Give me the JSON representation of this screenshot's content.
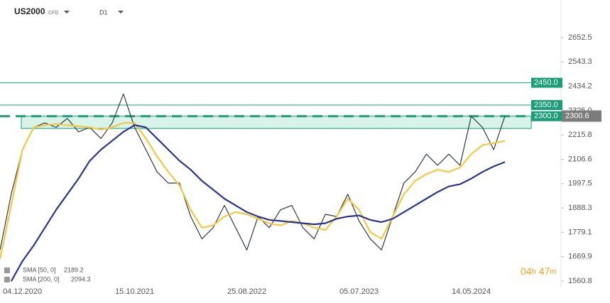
{
  "header": {
    "symbol": "US2000",
    "instrument": "CFD",
    "interval": "D1"
  },
  "chart_data": {
    "type": "line",
    "categories": [
      null,
      null,
      "04.12.2020",
      null,
      null,
      null,
      null,
      null,
      null,
      null,
      null,
      null,
      "15.10.2021",
      null,
      null,
      null,
      null,
      null,
      null,
      null,
      null,
      null,
      "25.08.2022",
      null,
      null,
      null,
      null,
      null,
      null,
      null,
      null,
      null,
      "05.07.2023",
      null,
      null,
      null,
      null,
      null,
      null,
      null,
      null,
      null,
      "14.05.2024",
      null,
      null,
      null,
      null,
      null,
      null,
      null
    ],
    "series": [
      {
        "name": "US2000",
        "color": "#2f3b44",
        "values": [
          1700,
          1950,
          2150,
          2250,
          2270,
          2250,
          2290,
          2230,
          2250,
          2200,
          2270,
          2400,
          2250,
          2150,
          2050,
          2000,
          2000,
          1850,
          1750,
          1800,
          1900,
          1800,
          1700,
          1850,
          1800,
          1880,
          1900,
          1800,
          1750,
          1860,
          1850,
          1950,
          1830,
          1750,
          1700,
          1850,
          2000,
          2050,
          2130,
          2080,
          2130,
          2080,
          2300,
          2250,
          2150,
          2300.6,
          null,
          null,
          null,
          null
        ]
      },
      {
        "name": "SMA [50, 0]",
        "value_label": "2189.2",
        "color": "#f2c744",
        "values": [
          1660,
          1900,
          2150,
          2250,
          2260,
          2265,
          2260,
          2255,
          2250,
          2240,
          2250,
          2270,
          2270,
          2200,
          2120,
          2050,
          1990,
          1880,
          1800,
          1810,
          1850,
          1870,
          1860,
          1840,
          1820,
          1810,
          1830,
          1820,
          1800,
          1790,
          1850,
          1930,
          1880,
          1780,
          1750,
          1850,
          1950,
          2010,
          2040,
          2060,
          2050,
          2070,
          2130,
          2170,
          2180,
          2189.2,
          null,
          null,
          null,
          null
        ]
      },
      {
        "name": "SMA [200, 0]",
        "value_label": "2094.3",
        "color": "#2b3590",
        "values": [
          null,
          1560,
          1650,
          1720,
          1800,
          1880,
          1950,
          2020,
          2100,
          2150,
          2190,
          2230,
          2260,
          2250,
          2200,
          2150,
          2100,
          2060,
          2010,
          1970,
          1930,
          1900,
          1870,
          1850,
          1835,
          1830,
          1825,
          1820,
          1815,
          1820,
          1840,
          1850,
          1855,
          1835,
          1825,
          1840,
          1870,
          1900,
          1930,
          1960,
          1985,
          1995,
          2020,
          2050,
          2075,
          2094.3,
          null,
          null,
          null,
          null
        ]
      }
    ],
    "ylim": [
      1532.2,
      2821.2
    ],
    "yticks": [
      1560.8,
      1669.9,
      1779.1,
      1888.3,
      1997.5,
      2106.6,
      2215.8,
      {
        "value": 2325,
        "label": "2325.0"
      },
      2434.2,
      2543.3,
      2652.5
    ],
    "levels": [
      {
        "value": 2450,
        "label": "2450.0",
        "color": "#1a9e78"
      },
      {
        "value": 2350,
        "label": "2350.0",
        "color": "#1a9e78"
      },
      {
        "value": 2300,
        "label": "2300.0",
        "color": "#1a9e78"
      }
    ],
    "zone": {
      "low": 2245,
      "high": 2300
    },
    "last_price": 2300.6,
    "timer": [
      "04",
      "h",
      "47",
      "m"
    ]
  }
}
